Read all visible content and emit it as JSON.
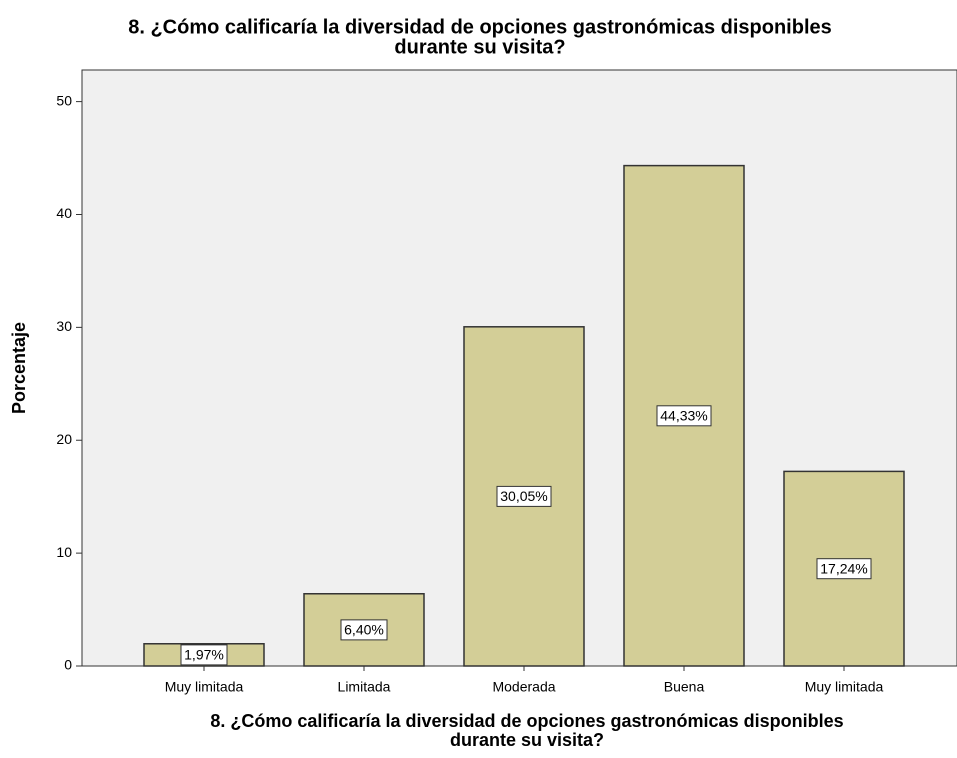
{
  "chart_data": {
    "type": "bar",
    "title": [
      "8. ¿Cómo calificaría la diversidad de opciones gastronómicas disponibles",
      "durante su visita?"
    ],
    "xlabel": [
      "8. ¿Cómo calificaría la diversidad de opciones gastronómicas disponibles",
      "durante su visita?"
    ],
    "ylabel": "Porcentaje",
    "categories": [
      "Muy limitada",
      "Limitada",
      "Moderada",
      "Buena",
      "Muy limitada"
    ],
    "values": [
      1.97,
      6.4,
      30.05,
      44.33,
      17.24
    ],
    "value_labels": [
      "1,97%",
      "6,40%",
      "30,05%",
      "44,33%",
      "17,24%"
    ],
    "color": "#d3ce97",
    "ylim": [
      0,
      52.8
    ],
    "yticks": [
      0,
      10,
      20,
      30,
      40,
      50
    ],
    "grid": false
  }
}
